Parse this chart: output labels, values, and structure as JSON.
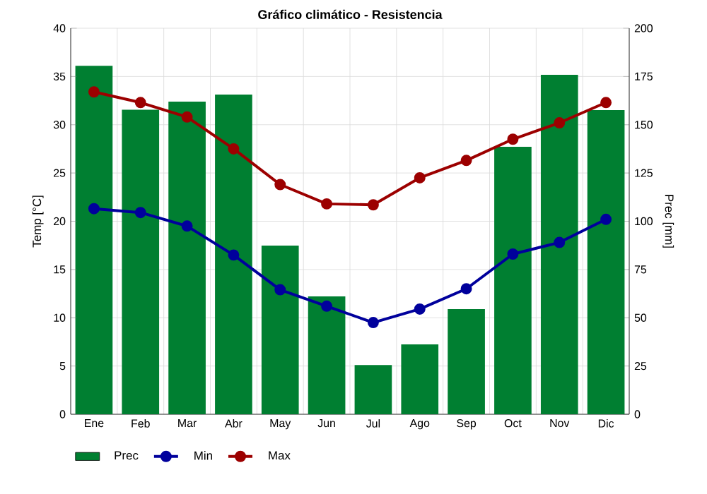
{
  "chart_data": {
    "type": "bar",
    "title": "Gráfico climático - Resistencia",
    "ylabel": "Temp [°C]",
    "y2label": "Prec [mm]",
    "categories": [
      "Ene",
      "Feb",
      "Mar",
      "Abr",
      "May",
      "Jun",
      "Jul",
      "Ago",
      "Sep",
      "Oct",
      "Nov",
      "Dic"
    ],
    "series": [
      {
        "name": "Prec",
        "axis": "y2",
        "color": "#007f31",
        "values": [
          180.5,
          157.8,
          162,
          165.6,
          87.4,
          61.1,
          25.5,
          36.2,
          54.5,
          138.6,
          175.9,
          157.6
        ]
      },
      {
        "name": "Min",
        "type": "line",
        "axis": "y",
        "color": "#00009c",
        "values": [
          21.3,
          20.9,
          19.5,
          16.5,
          12.9,
          11.2,
          9.5,
          10.9,
          13.0,
          16.6,
          17.8,
          20.2
        ]
      },
      {
        "name": "Max",
        "type": "line",
        "axis": "y",
        "color": "#9c0000",
        "values": [
          33.4,
          32.3,
          30.8,
          27.5,
          23.8,
          21.8,
          21.7,
          24.5,
          26.3,
          28.5,
          30.2,
          32.3
        ]
      }
    ],
    "ylim": [
      0,
      40
    ],
    "yticks": [
      0,
      5,
      10,
      15,
      20,
      25,
      30,
      35,
      40
    ],
    "y2lim": [
      0,
      200
    ],
    "y2ticks": [
      0,
      25,
      50,
      75,
      100,
      125,
      150,
      175,
      200
    ],
    "grid": true,
    "legend": "bottom",
    "marker": "circle",
    "line_style": "solid"
  }
}
